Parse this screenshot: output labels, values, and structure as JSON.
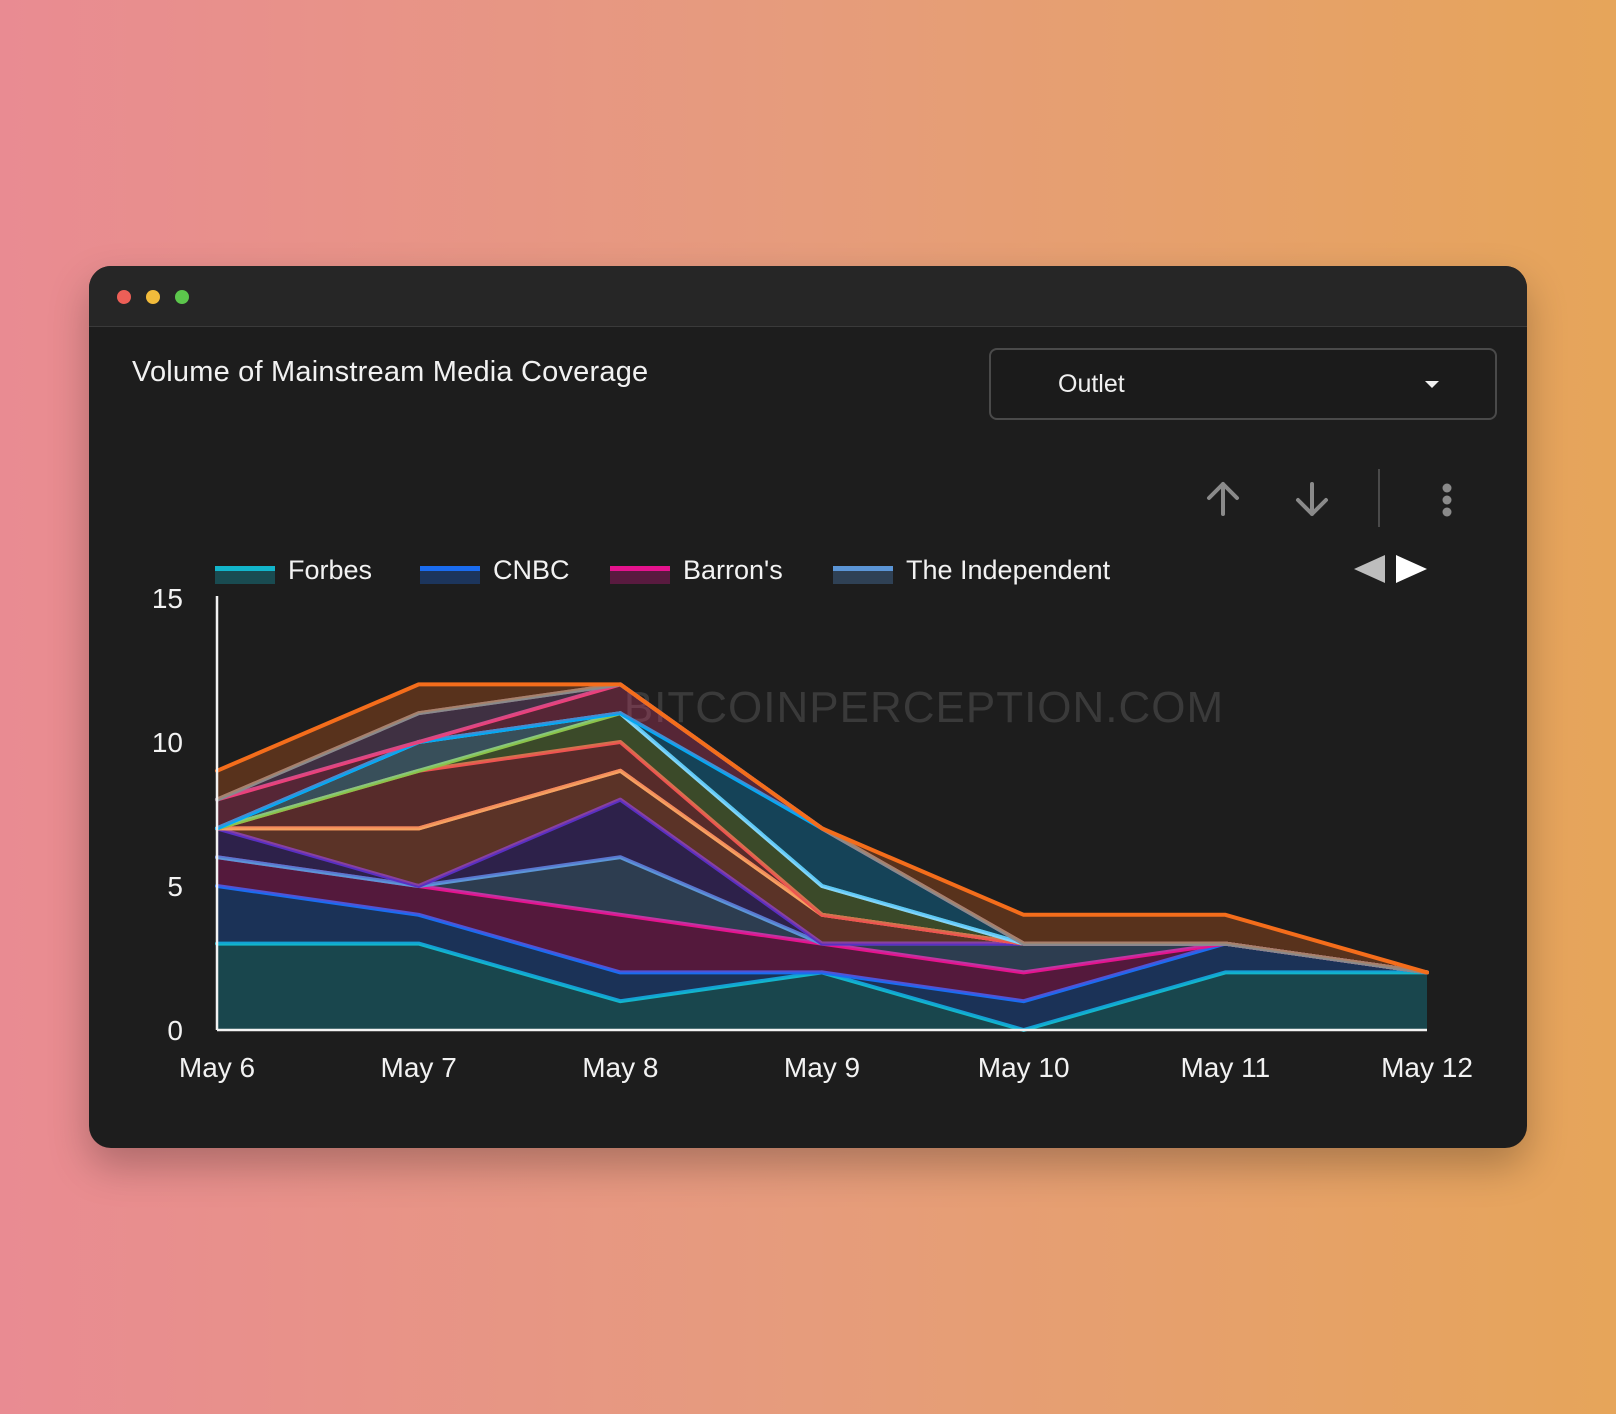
{
  "window": {
    "title": ""
  },
  "header": {
    "title": "Volume of Mainstream Media Coverage"
  },
  "dropdown": {
    "selected": "Outlet"
  },
  "toolbar": {
    "icons": [
      "arrow-up-icon",
      "arrow-down-icon",
      "more-vertical-icon"
    ]
  },
  "legend_nav": {
    "icons": [
      "prev-page-icon",
      "next-page-icon"
    ]
  },
  "watermark": "BITCOINPERCEPTION.COM",
  "chart_data": {
    "type": "area",
    "stacked": true,
    "title": "Volume of Mainstream Media Coverage",
    "xlabel": "",
    "ylabel": "",
    "categories": [
      "May 6",
      "May 7",
      "May 8",
      "May 9",
      "May 10",
      "May 11",
      "May 12"
    ],
    "ylim": [
      0,
      15
    ],
    "yticks": [
      0,
      5,
      10,
      15
    ],
    "grid": false,
    "legend": {
      "position": "top-left",
      "visible_entries": [
        "Forbes",
        "CNBC",
        "Barron's",
        "The Independent"
      ]
    },
    "series": [
      {
        "name": "Forbes",
        "color": "#12b5cb",
        "values": [
          3,
          3,
          1,
          2,
          0,
          2,
          2
        ]
      },
      {
        "name": "CNBC",
        "color": "#1a6cf0",
        "values": [
          2,
          1,
          1,
          0,
          1,
          1,
          0
        ]
      },
      {
        "name": "Barron's",
        "color": "#e5138e",
        "values": [
          1,
          1,
          2,
          1,
          1,
          0,
          0
        ]
      },
      {
        "name": "The Independent",
        "color": "#5b95d6",
        "values": [
          0,
          0,
          2,
          0,
          1,
          0,
          0
        ]
      },
      {
        "color": "#5a2fc2",
        "values": [
          1,
          0,
          2,
          0,
          0,
          0,
          0
        ]
      },
      {
        "color": "#ff7043",
        "values": [
          0,
          2,
          1,
          1,
          0,
          0,
          0
        ]
      },
      {
        "color": "#f4a261",
        "values": [
          0,
          0,
          0,
          0,
          0,
          0,
          0
        ]
      },
      {
        "color": "#ef5350",
        "values": [
          0,
          2,
          1,
          0,
          0,
          0,
          0
        ]
      },
      {
        "color": "#8bc34a",
        "values": [
          0,
          0,
          1,
          1,
          0,
          0,
          0
        ]
      },
      {
        "color": "#81d4fa",
        "values": [
          0,
          1,
          0,
          0,
          0,
          0,
          0
        ]
      },
      {
        "color": "#03a9f4",
        "values": [
          0,
          0,
          0,
          2,
          0,
          0,
          0
        ]
      },
      {
        "color": "#ec407a",
        "values": [
          1,
          0,
          1,
          0,
          0,
          0,
          0
        ]
      },
      {
        "color": "#9c64a6",
        "values": [
          0,
          1,
          0,
          0,
          0,
          0,
          0
        ]
      },
      {
        "color": "#8a8a8a",
        "values": [
          0,
          0,
          0,
          0,
          0,
          0,
          0
        ]
      },
      {
        "color": "#f46d1b",
        "values": [
          1,
          1,
          0,
          0,
          1,
          1,
          0
        ]
      }
    ]
  }
}
